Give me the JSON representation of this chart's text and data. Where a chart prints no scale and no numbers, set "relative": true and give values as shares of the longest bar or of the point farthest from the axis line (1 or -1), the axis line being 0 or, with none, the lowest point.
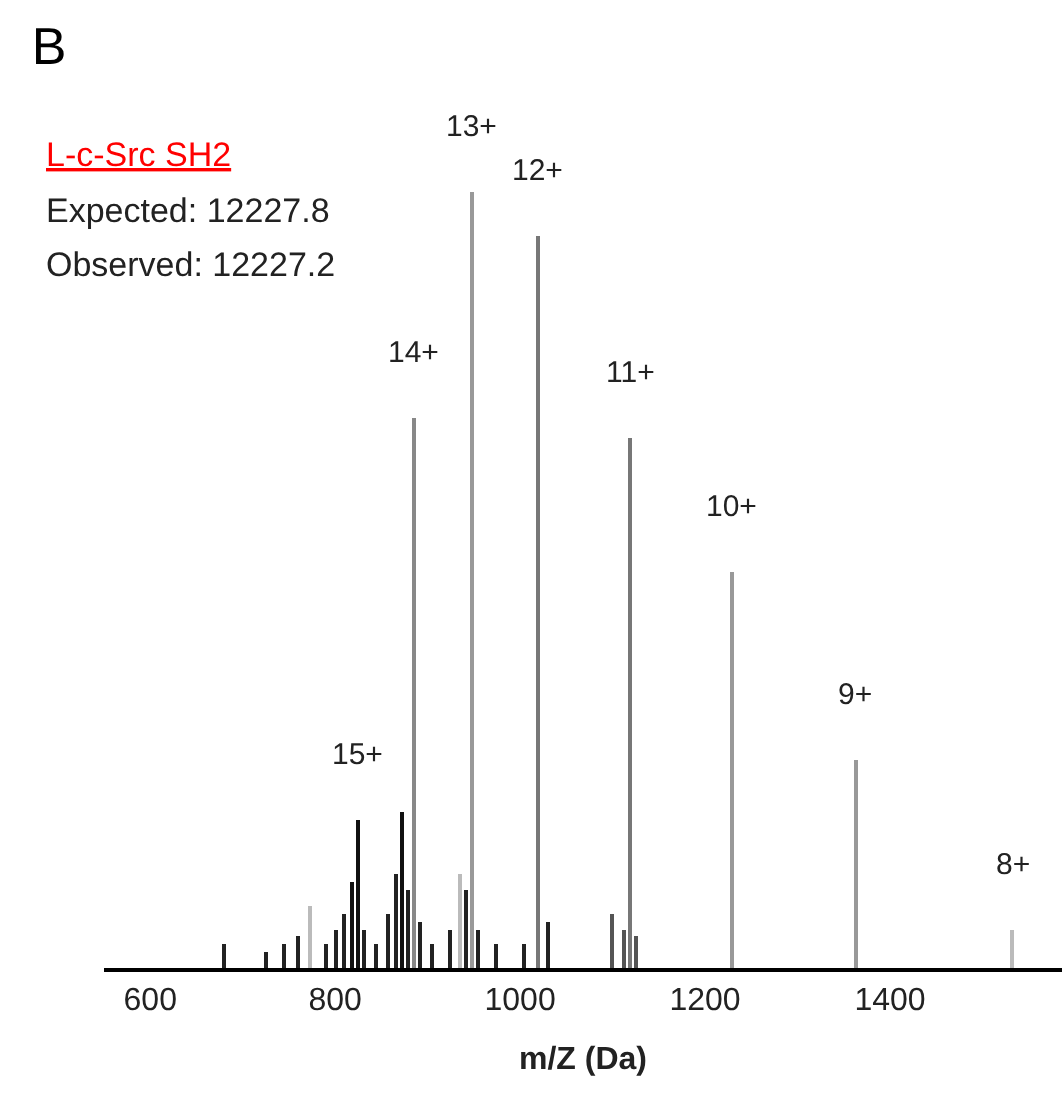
{
  "chart_data": {
    "type": "bar",
    "title": "B",
    "xlabel": "m/Z (Da)",
    "relative": true,
    "x": [
      680,
      725,
      745,
      760,
      773,
      790,
      800,
      810,
      818,
      825,
      832,
      845,
      858,
      866,
      872,
      878,
      885,
      892,
      905,
      925,
      935,
      941,
      948,
      955,
      975,
      1005,
      1019,
      1030,
      1100,
      1112,
      1119,
      1125,
      1229,
      1363,
      1532
    ],
    "values": [
      0.03,
      0.02,
      0.03,
      0.04,
      0.08,
      0.03,
      0.05,
      0.07,
      0.11,
      0.19,
      0.05,
      0.03,
      0.07,
      0.12,
      0.2,
      0.1,
      0.71,
      0.06,
      0.03,
      0.05,
      0.12,
      0.1,
      1,
      0.05,
      0.03,
      0.03,
      0.943,
      0.06,
      0.07,
      0.05,
      0.684,
      0.04,
      0.51,
      0.269,
      0.05
    ],
    "colors": [
      "#222222",
      "#222222",
      "#222222",
      "#222222",
      "#bbbbbb",
      "#222222",
      "#222222",
      "#222222",
      "#111111",
      "#111111",
      "#222222",
      "#222222",
      "#222222",
      "#222222",
      "#111111",
      "#222222",
      "#888888",
      "#222222",
      "#222222",
      "#222222",
      "#bbbbbb",
      "#222222",
      "#999999",
      "#222222",
      "#222222",
      "#222222",
      "#777777",
      "#222222",
      "#555555",
      "#555555",
      "#777777",
      "#555555",
      "#999999",
      "#999999",
      "#bbbbbb"
    ],
    "xlim": [
      550,
      1586
    ],
    "xticks": [
      600,
      800,
      1000,
      1200,
      1400
    ],
    "annotations": [
      "L-c-Src SH2",
      "Expected: 12227.8",
      "Observed: 12227.2",
      {
        "text": "15+",
        "x": 825,
        "y": 0.19
      },
      {
        "text": "14+",
        "x": 885,
        "y": 0.71
      },
      {
        "text": "13+",
        "x": 948,
        "y": 1
      },
      {
        "text": "12+",
        "x": 1019,
        "y": 0.943
      },
      {
        "text": "11+",
        "x": 1119,
        "y": 0.684
      },
      {
        "text": "10+",
        "x": 1229,
        "y": 0.51
      },
      {
        "text": "9+",
        "x": 1363,
        "y": 0.269
      },
      {
        "text": "8+",
        "x": 1532,
        "y": 0.05
      }
    ]
  }
}
